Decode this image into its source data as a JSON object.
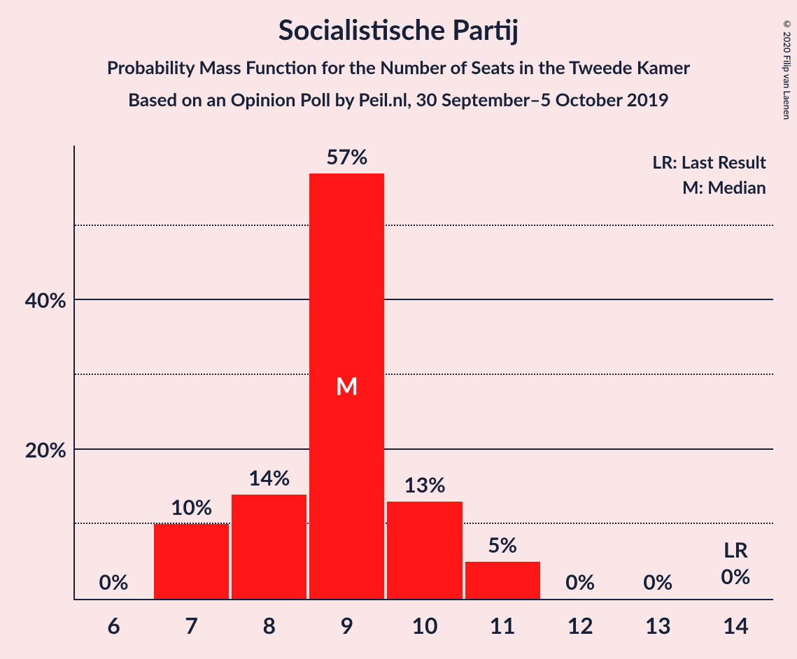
{
  "title": "Socialistische Partij",
  "subtitle1": "Probability Mass Function for the Number of Seats in the Tweede Kamer",
  "subtitle2": "Based on an Opinion Poll by Peil.nl, 30 September–5 October 2019",
  "copyright": "© 2020 Filip van Laenen",
  "legend": {
    "lr": "LR: Last Result",
    "m": "M: Median"
  },
  "chart": {
    "type": "bar",
    "bar_color": "#ff1717",
    "background_color": "#fae6e6",
    "axis_color": "#15223a",
    "text_color": "#15223a",
    "median_text_color": "#ffffff",
    "categories": [
      "6",
      "7",
      "8",
      "9",
      "10",
      "11",
      "12",
      "13",
      "14"
    ],
    "values": [
      0,
      10,
      14,
      57,
      13,
      5,
      0,
      0,
      0
    ],
    "value_labels": [
      "0%",
      "10%",
      "14%",
      "57%",
      "13%",
      "5%",
      "0%",
      "0%",
      "0%"
    ],
    "median_index": 3,
    "median_symbol": "M",
    "lr_index": 8,
    "lr_symbol": "LR",
    "y_max_display": 57,
    "y_ticks_major": [
      20,
      40
    ],
    "y_ticks_minor": [
      10,
      30,
      50
    ],
    "y_tick_labels": {
      "20": "20%",
      "40": "40%"
    },
    "bar_width_ratio": 0.96,
    "title_fontsize": 40,
    "subtitle_fontsize": 26,
    "axis_label_fontsize": 32,
    "value_label_fontsize": 30
  }
}
